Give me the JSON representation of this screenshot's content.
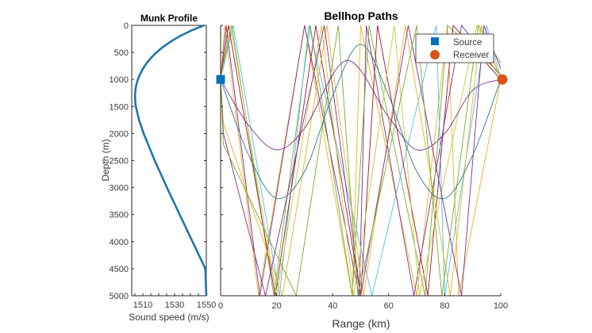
{
  "chart_data": [
    {
      "type": "line",
      "title": "Munk Profile",
      "xlabel": "Sound speed (m/s)",
      "ylabel": "Depth (m)",
      "xlim": [
        1503,
        1550
      ],
      "ylim": [
        0,
        5000
      ],
      "y_reversed": true,
      "xticks": [
        "1510",
        "1530",
        "1550"
      ],
      "xtick_values": [
        1510,
        1530,
        1550
      ],
      "yticks": [
        "0",
        "500",
        "1000",
        "1500",
        "2000",
        "2500",
        "3000",
        "3500",
        "4000",
        "4500",
        "5000"
      ],
      "ytick_values": [
        0,
        500,
        1000,
        1500,
        2000,
        2500,
        3000,
        3500,
        4000,
        4500,
        5000
      ],
      "series": [
        {
          "name": "Sound speed",
          "color": "#0072BD",
          "depth": [
            0,
            100,
            200,
            300,
            400,
            500,
            600,
            700,
            800,
            900,
            1000,
            1100,
            1200,
            1300,
            1400,
            1500,
            1750,
            2000,
            2500,
            3000,
            3500,
            4000,
            4500,
            5000
          ],
          "speed": [
            1548.5,
            1540.2,
            1533.3,
            1527.5,
            1522.6,
            1518.6,
            1515.2,
            1512.4,
            1510.1,
            1508.3,
            1506.9,
            1505.9,
            1505.3,
            1505.1,
            1505.2,
            1505.6,
            1507.6,
            1510.5,
            1517.5,
            1525.2,
            1533.2,
            1541.3,
            1549.4,
            1550.0
          ]
        }
      ]
    },
    {
      "type": "line",
      "title": "Bellhop Paths",
      "xlabel": "Range (km)",
      "ylabel": "",
      "xlim": [
        0,
        100
      ],
      "ylim": [
        0,
        5000
      ],
      "y_reversed": true,
      "xticks": [
        "0",
        "20",
        "40",
        "60",
        "80",
        "100"
      ],
      "xtick_values": [
        0,
        20,
        40,
        60,
        80,
        100
      ],
      "legend": {
        "position": "top-right",
        "entries": [
          "Source",
          "Receiver"
        ]
      },
      "source": {
        "label": "Source",
        "range_km": 0,
        "depth_m": 1000,
        "color": "#0072BD",
        "marker": "square"
      },
      "receiver": {
        "label": "Receiver",
        "range_km": 100,
        "depth_m": 1000,
        "color": "#D95319",
        "marker": "circle"
      },
      "refracted_rays": [
        {
          "name": "ray-refracted-1",
          "color": "#7E2F8E",
          "x": [
            0,
            10,
            20,
            30,
            45,
            60,
            70,
            80,
            90,
            100
          ],
          "y": [
            1000,
            1850,
            2300,
            1900,
            650,
            1700,
            2300,
            2000,
            1200,
            1000
          ]
        },
        {
          "name": "ray-refracted-2",
          "color": "#2E7D8C",
          "x": [
            0,
            10,
            20,
            30,
            40,
            50,
            60,
            70,
            80,
            90,
            100
          ],
          "y": [
            1000,
            2400,
            3200,
            2700,
            1300,
            350,
            1300,
            2700,
            3200,
            2400,
            1000
          ]
        }
      ],
      "bouncing_rays": [
        {
          "name": "ray-bounce-1",
          "color": "#EDB120",
          "x": [
            0,
            1.5,
            13.5,
            30,
            47,
            50,
            70,
            81,
            85,
            100
          ],
          "y": [
            1000,
            0,
            5000,
            0,
            5000,
            0,
            5000,
            0,
            5000,
            1000
          ]
        },
        {
          "name": "ray-bounce-2",
          "color": "#7E2F8E",
          "x": [
            0,
            2,
            14,
            30,
            49.5,
            52,
            69,
            86,
            100
          ],
          "y": [
            1000,
            0,
            5000,
            0,
            5000,
            0,
            5000,
            0,
            950
          ]
        },
        {
          "name": "ray-bounce-3",
          "color": "#77AC30",
          "x": [
            0,
            4,
            19,
            32,
            47,
            53,
            73,
            81,
            100
          ],
          "y": [
            1000,
            0,
            5000,
            0,
            5000,
            0,
            5000,
            0,
            900
          ]
        },
        {
          "name": "ray-bounce-4",
          "color": "#4DBEEE",
          "x": [
            0,
            4.5,
            21,
            31.5,
            54,
            77,
            80,
            95,
            100
          ],
          "y": [
            1000,
            0,
            5000,
            0,
            5000,
            0,
            5000,
            0,
            1000
          ]
        },
        {
          "name": "ray-bounce-5",
          "color": "#A2142F",
          "x": [
            0,
            2.8,
            19.5,
            34,
            50,
            56,
            74,
            83,
            100
          ],
          "y": [
            1000,
            0,
            5000,
            0,
            5000,
            0,
            5000,
            0,
            1000
          ]
        },
        {
          "name": "ray-bounce-6",
          "color": "#C9C93A",
          "x": [
            0,
            3.5,
            20,
            36,
            47.5,
            62,
            71,
            91.5,
            100
          ],
          "y": [
            1000,
            0,
            5000,
            0,
            5000,
            0,
            5000,
            0,
            1000
          ]
        },
        {
          "name": "ray-bounce-7",
          "color": "#EDB120",
          "x": [
            0,
            1,
            22,
            38,
            51,
            66,
            82,
            93,
            100
          ],
          "y": [
            1000,
            1800,
            5000,
            0,
            5000,
            0,
            5000,
            0,
            1000
          ]
        },
        {
          "name": "ray-bounce-8",
          "color": "#7E2F8E",
          "x": [
            0,
            1,
            16,
            37,
            50,
            67,
            86,
            94,
            100
          ],
          "y": [
            1000,
            2000,
            5000,
            0,
            5000,
            0,
            5000,
            0,
            800
          ]
        },
        {
          "name": "ray-bounce-9",
          "color": "#77AC30",
          "x": [
            0,
            1,
            27,
            42,
            49,
            70,
            79,
            92,
            100
          ],
          "y": [
            1000,
            2200,
            5000,
            0,
            5000,
            0,
            5000,
            0,
            700
          ]
        }
      ]
    }
  ]
}
